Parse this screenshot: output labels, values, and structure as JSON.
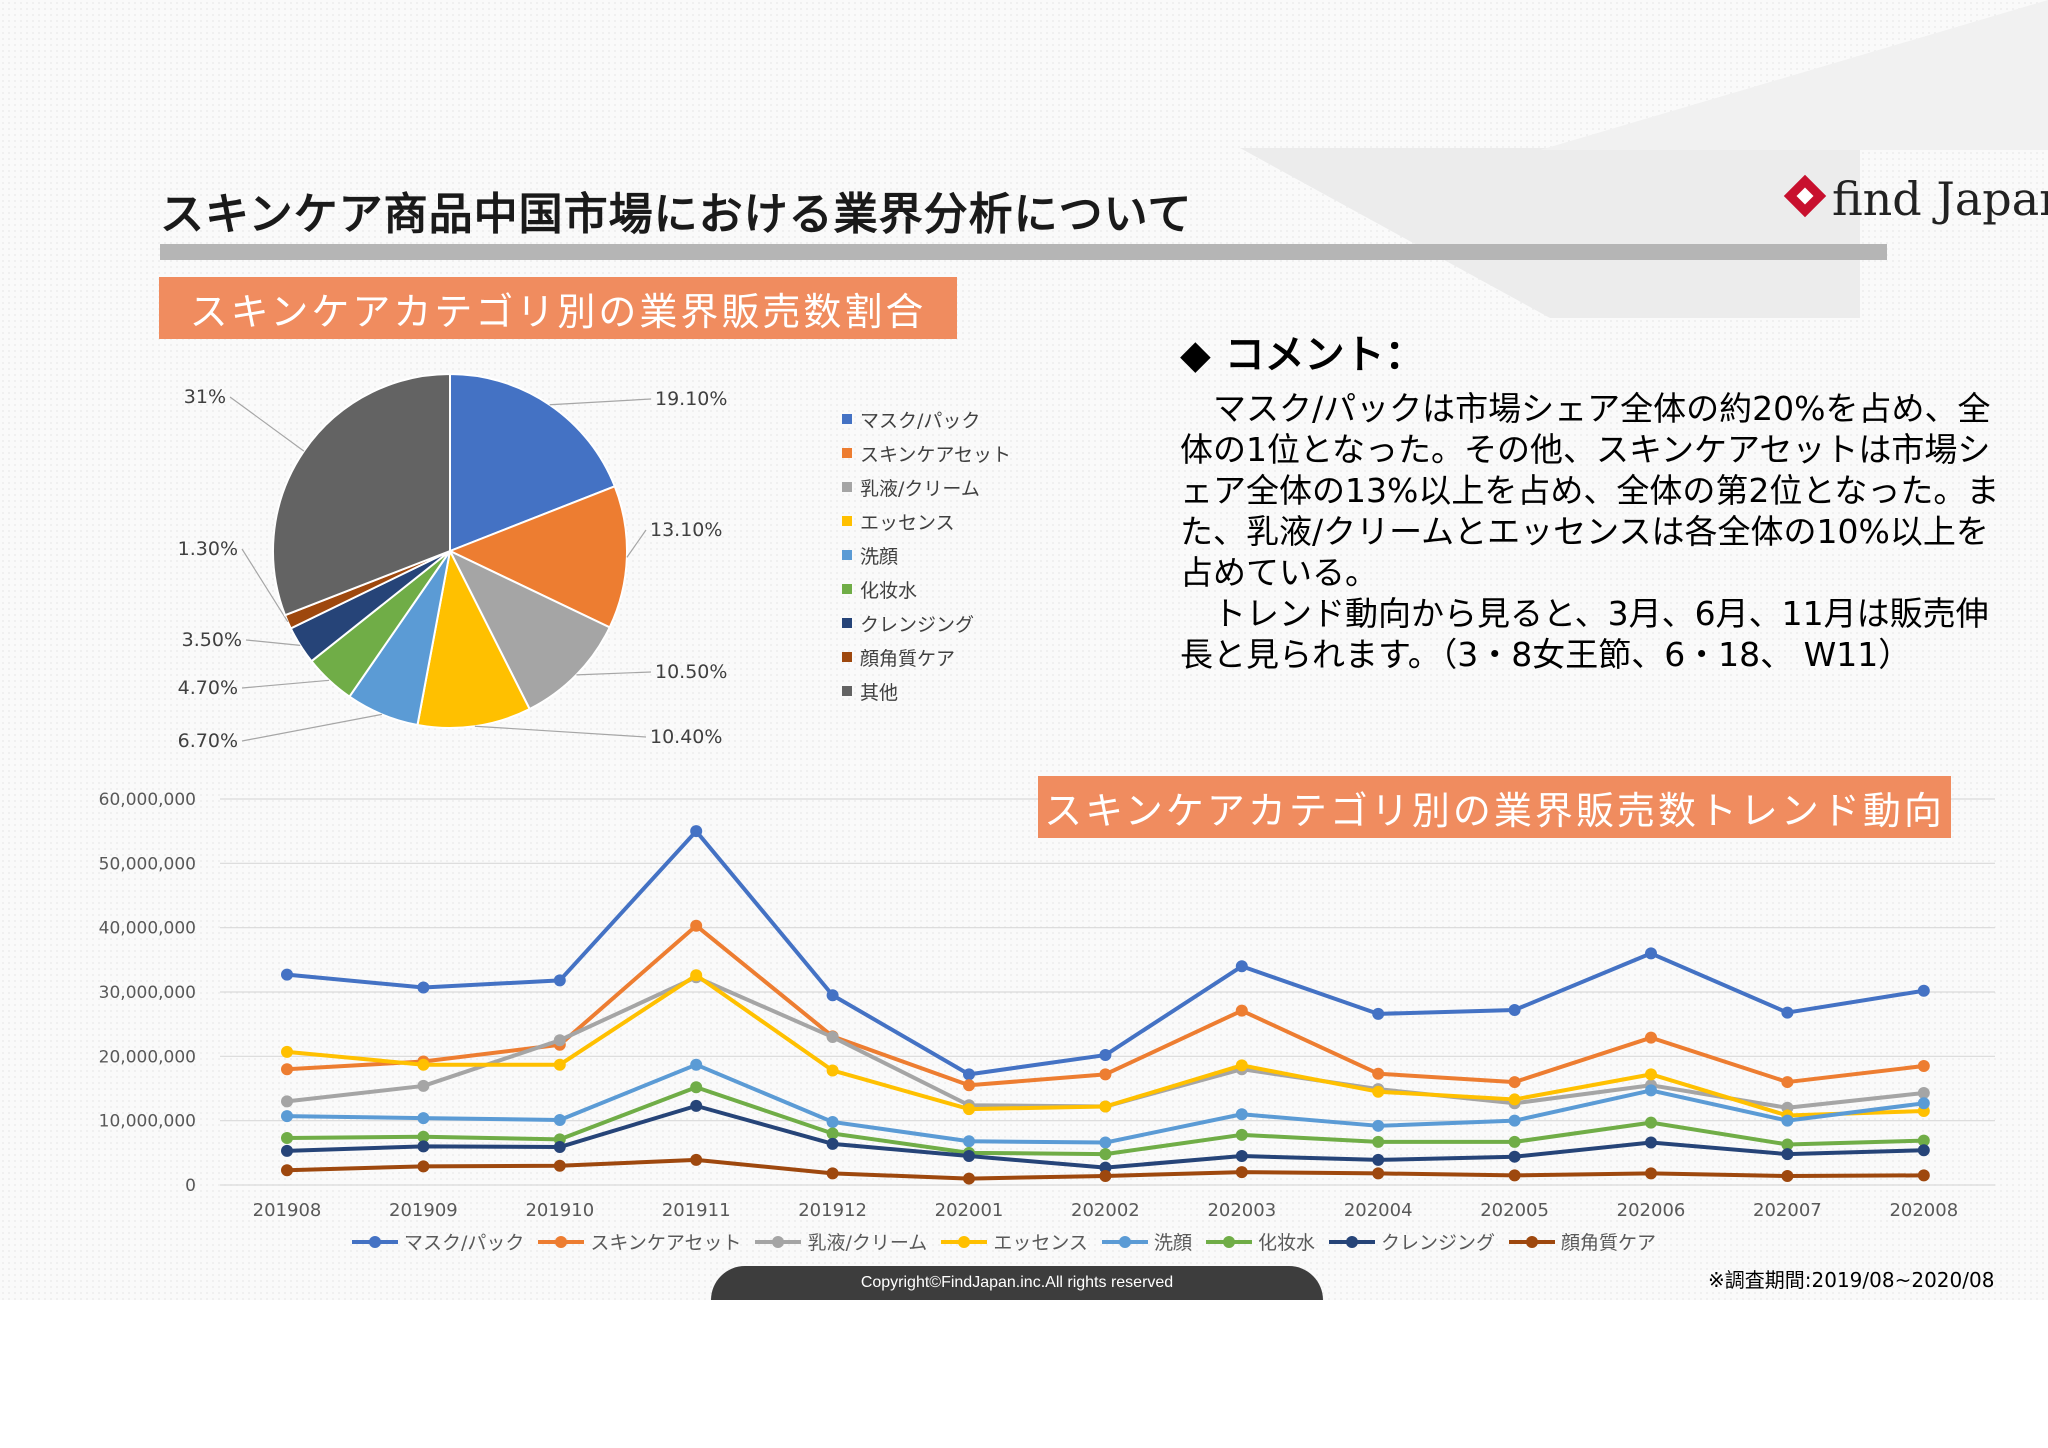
{
  "header": {
    "title": "スキンケア商品中国市場における業界分析について",
    "logo_text": "find Japan"
  },
  "pie_banner": "スキンケアカテゴリ別の業界販売数割合",
  "trend_banner": "スキンケアカテゴリ別の業界販売数トレンド動向",
  "comment": {
    "heading": "◆ コメント：",
    "body": "　マスク/パックは市場シェア全体の約20%を占め、全体の1位となった。その他、スキンケアセットは市場シェア全体の13%以上を占め、全体の第2位となった。また、乳液/クリームとエッセンスは各全体の10%以上を占めている。\n　トレンド動向から見ると、3月、6月、11月は販売伸長と見られます。（3・8女王節、6・18、 W11）"
  },
  "survey_note": "※調査期間:2019/08~2020/08",
  "footer": "Copyright©FindJapan.inc.All rights reserved",
  "chart_data": [
    {
      "type": "pie",
      "categories": [
        "マスク/パック",
        "スキンケアセット",
        "乳液/クリーム",
        "エッセンス",
        "洗顔",
        "化妆水",
        "クレンジング",
        "顔角質ケア",
        "其他"
      ],
      "values": [
        19.1,
        13.1,
        10.5,
        10.4,
        6.7,
        4.7,
        3.5,
        1.3,
        31
      ],
      "labels": [
        "19.10%",
        "13.10%",
        "10.50%",
        "10.40%",
        "6.70%",
        "4.70%",
        "3.50%",
        "1.30%",
        "31%"
      ],
      "colors": [
        "#4472c4",
        "#ed7d31",
        "#a5a5a5",
        "#ffc000",
        "#5b9bd5",
        "#70ad47",
        "#264478",
        "#9e480e",
        "#636363"
      ],
      "legend": "right"
    },
    {
      "type": "line",
      "x": [
        "201908",
        "201909",
        "201910",
        "201911",
        "201912",
        "202001",
        "202002",
        "202003",
        "202004",
        "202005",
        "202006",
        "202007",
        "202008"
      ],
      "ylim": [
        0,
        60000000
      ],
      "yticks": [
        "0",
        "10,000,000",
        "20,000,000",
        "30,000,000",
        "40,000,000",
        "50,000,000",
        "60,000,000"
      ],
      "grid": true,
      "legend": "bottom",
      "series": [
        {
          "name": "マスク/パック",
          "color": "#4472c4",
          "values": [
            32700000,
            30700000,
            31800000,
            55000000,
            29500000,
            17200000,
            20200000,
            34000000,
            26600000,
            27200000,
            36000000,
            26800000,
            30200000
          ]
        },
        {
          "name": "スキンケアセット",
          "color": "#ed7d31",
          "values": [
            18000000,
            19200000,
            21800000,
            40300000,
            23100000,
            15500000,
            17200000,
            27100000,
            17300000,
            16000000,
            22900000,
            16000000,
            18500000
          ]
        },
        {
          "name": "乳液/クリーム",
          "color": "#a5a5a5",
          "values": [
            13000000,
            15400000,
            22500000,
            32300000,
            23000000,
            12400000,
            12200000,
            18000000,
            14900000,
            12700000,
            15500000,
            12000000,
            14300000
          ]
        },
        {
          "name": "エッセンス",
          "color": "#ffc000",
          "values": [
            20700000,
            18700000,
            18700000,
            32600000,
            17800000,
            11800000,
            12200000,
            18600000,
            14500000,
            13300000,
            17200000,
            10800000,
            11500000
          ]
        },
        {
          "name": "洗顔",
          "color": "#5b9bd5",
          "values": [
            10700000,
            10400000,
            10100000,
            18700000,
            9800000,
            6800000,
            6600000,
            11000000,
            9200000,
            10000000,
            14700000,
            10000000,
            12700000
          ]
        },
        {
          "name": "化妆水",
          "color": "#70ad47",
          "values": [
            7300000,
            7500000,
            7100000,
            15200000,
            8000000,
            5000000,
            4800000,
            7800000,
            6700000,
            6700000,
            9700000,
            6300000,
            6900000
          ]
        },
        {
          "name": "クレンジング",
          "color": "#264478",
          "values": [
            5300000,
            6000000,
            5900000,
            12300000,
            6400000,
            4500000,
            2700000,
            4500000,
            3900000,
            4400000,
            6600000,
            4800000,
            5400000
          ]
        },
        {
          "name": "顔角質ケア",
          "color": "#9e480e",
          "values": [
            2300000,
            2900000,
            3000000,
            3900000,
            1800000,
            1000000,
            1400000,
            2000000,
            1800000,
            1500000,
            1800000,
            1400000,
            1500000
          ]
        }
      ]
    }
  ]
}
